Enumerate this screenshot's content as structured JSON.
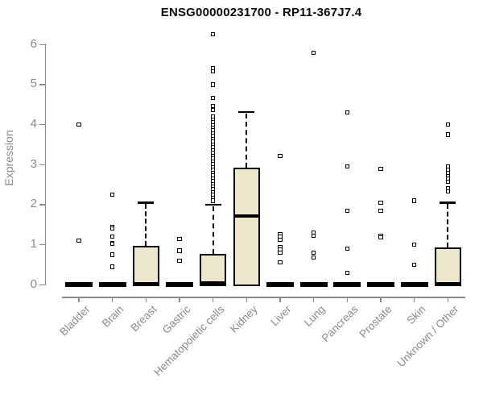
{
  "chart_data": {
    "type": "boxplot",
    "title": "ENSG00000231700 - RP11-367J7.4",
    "ylabel": "Expression",
    "xlabel": "",
    "ylim": [
      0,
      6.3
    ],
    "yticks": [
      0,
      1,
      2,
      3,
      4,
      5,
      6
    ],
    "grid": false,
    "legend": false,
    "colors": {
      "box_fill": "#EDE7CE",
      "box_border": "#000000",
      "median": "#000000",
      "outlier": "#000000",
      "axis": "#8A8A8A",
      "title_text": "#0A0A0A",
      "background": "#FFFFFF"
    },
    "categories": [
      "Bladder",
      "Brain",
      "Breast",
      "Gastric",
      "Hematopoietic cells",
      "Kidney",
      "Liver",
      "Lung",
      "Pancreas",
      "Prostate",
      "Skin",
      "Unknown / Other"
    ],
    "series": [
      {
        "name": "Bladder",
        "q1": 0,
        "median": 0,
        "q3": 0,
        "whisker_low": 0,
        "whisker_high": 0,
        "outliers": [
          4.0,
          1.1
        ]
      },
      {
        "name": "Brain",
        "q1": 0,
        "median": 0,
        "q3": 0,
        "whisker_low": 0,
        "whisker_high": 0,
        "outliers": [
          2.25,
          1.45,
          1.4,
          1.2,
          1.05,
          1.02,
          0.75,
          0.45
        ]
      },
      {
        "name": "Breast",
        "q1": 0,
        "median": 0.02,
        "q3": 0.97,
        "whisker_low": 0,
        "whisker_high": 2.05,
        "outliers": []
      },
      {
        "name": "Gastric",
        "q1": 0,
        "median": 0,
        "q3": 0,
        "whisker_low": 0,
        "whisker_high": 0,
        "outliers": [
          1.15,
          0.85,
          0.6
        ]
      },
      {
        "name": "Hematopoietic cells",
        "q1": 0,
        "median": 0.04,
        "q3": 0.78,
        "whisker_low": 0,
        "whisker_high": 2.0,
        "outliers": [
          6.25,
          5.4,
          5.33,
          5.0,
          4.66,
          4.46,
          4.36,
          4.2,
          4.13,
          4.06,
          3.99,
          3.92,
          3.85,
          3.78,
          3.71,
          3.64,
          3.57,
          3.5,
          3.43,
          3.36,
          3.29,
          3.22,
          3.15,
          3.08,
          3.01,
          2.94,
          2.87,
          2.8,
          2.73,
          2.66,
          2.59,
          2.52,
          2.45,
          2.38,
          2.31,
          2.24,
          2.17,
          2.1
        ]
      },
      {
        "name": "Kidney",
        "q1": 0,
        "median": 1.72,
        "q3": 2.92,
        "whisker_low": 0,
        "whisker_high": 4.32,
        "outliers": []
      },
      {
        "name": "Liver",
        "q1": 0,
        "median": 0,
        "q3": 0,
        "whisker_low": 0,
        "whisker_high": 0,
        "outliers": [
          3.22,
          1.27,
          1.2,
          1.13,
          0.95,
          0.88,
          0.8,
          0.56
        ]
      },
      {
        "name": "Lung",
        "q1": 0,
        "median": 0,
        "q3": 0,
        "whisker_low": 0,
        "whisker_high": 0,
        "outliers": [
          5.8,
          1.3,
          1.22,
          0.8,
          0.68
        ]
      },
      {
        "name": "Pancreas",
        "q1": 0,
        "median": 0,
        "q3": 0,
        "whisker_low": 0,
        "whisker_high": 0,
        "outliers": [
          4.3,
          2.95,
          1.85,
          0.9,
          0.3
        ]
      },
      {
        "name": "Prostate",
        "q1": 0,
        "median": 0,
        "q3": 0,
        "whisker_low": 0,
        "whisker_high": 0,
        "outliers": [
          2.9,
          2.05,
          1.85,
          1.22,
          1.18
        ]
      },
      {
        "name": "Skin",
        "q1": 0,
        "median": 0,
        "q3": 0,
        "whisker_low": 0,
        "whisker_high": 0,
        "outliers": [
          2.1,
          1.0,
          0.5
        ]
      },
      {
        "name": "Unknown / Other",
        "q1": 0,
        "median": 0.03,
        "q3": 0.93,
        "whisker_low": 0,
        "whisker_high": 2.05,
        "outliers": [
          4.0,
          3.75,
          2.95,
          2.87,
          2.79,
          2.72,
          2.65,
          2.58,
          2.4,
          2.33
        ]
      }
    ]
  }
}
